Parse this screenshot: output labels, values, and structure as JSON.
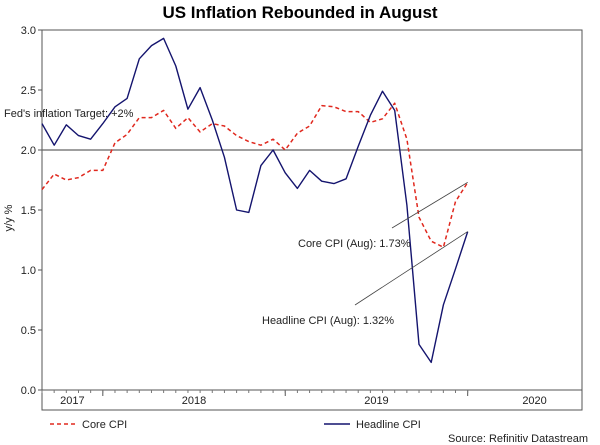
{
  "chart_data": {
    "type": "line",
    "title": "US Inflation Rebounded in August",
    "ylabel": "y/y %",
    "xlabel": "",
    "ylim": [
      0.0,
      3.0
    ],
    "yticks": [
      "0.0",
      "0.5",
      "1.0",
      "1.5",
      "2.0",
      "2.5",
      "3.0"
    ],
    "ytick_values": [
      0,
      0.5,
      1.0,
      1.5,
      2.0,
      2.5,
      3.0
    ],
    "xlim": [
      0,
      44.4
    ],
    "year_ticks": [
      {
        "label": "2017",
        "index": 2.5
      },
      {
        "label": "2018",
        "index": 12.5
      },
      {
        "label": "2019",
        "index": 27.5
      },
      {
        "label": "2020",
        "index": 40.5
      }
    ],
    "year_boundaries": [
      5,
      20,
      35
    ],
    "reference_line": {
      "value": 2.0,
      "label": "Fed's inflation Target: +2%"
    },
    "series": [
      {
        "name": "Core CPI",
        "color": "#e0281e",
        "style": "dashed",
        "values": [
          1.67,
          1.8,
          1.75,
          1.77,
          1.83,
          1.83,
          2.06,
          2.13,
          2.27,
          2.27,
          2.33,
          2.18,
          2.27,
          2.15,
          2.22,
          2.2,
          2.12,
          2.07,
          2.04,
          2.09,
          2.0,
          2.14,
          2.2,
          2.37,
          2.36,
          2.32,
          2.32,
          2.23,
          2.26,
          2.39,
          2.09,
          1.44,
          1.24,
          1.19,
          1.57,
          1.73
        ]
      },
      {
        "name": "Headline CPI",
        "color": "#14146e",
        "style": "solid",
        "values": [
          2.22,
          2.04,
          2.21,
          2.12,
          2.09,
          2.22,
          2.36,
          2.43,
          2.76,
          2.87,
          2.93,
          2.7,
          2.34,
          2.52,
          2.25,
          1.94,
          1.5,
          1.48,
          1.87,
          2.0,
          1.81,
          1.68,
          1.83,
          1.74,
          1.72,
          1.76,
          2.03,
          2.29,
          2.49,
          2.33,
          1.54,
          0.38,
          0.23,
          0.71,
          1.01,
          1.32
        ]
      }
    ],
    "annotations": [
      {
        "text": "Core CPI (Aug): 1.73%",
        "series": "Core CPI"
      },
      {
        "text": "Headline CPI (Aug): 1.32%",
        "series": "Headline CPI"
      }
    ],
    "legend_placement": "bottom",
    "source": "Source: Refinitiv Datastream"
  }
}
